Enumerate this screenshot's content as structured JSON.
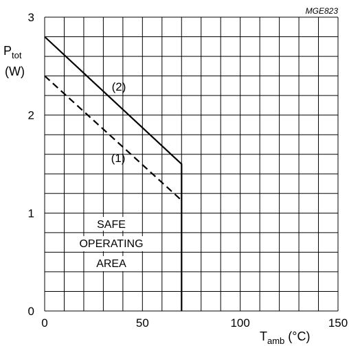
{
  "chart_data": {
    "type": "line",
    "figure_ref": "MGE823",
    "x_axis": {
      "label_main": "T",
      "label_sub": "amb",
      "label_unit": "(°C)",
      "range": [
        0,
        150
      ],
      "ticks": [
        0,
        50,
        100,
        150
      ],
      "tick_labels": [
        "0",
        "50",
        "100",
        "150"
      ],
      "minor_step": 10
    },
    "y_axis": {
      "label_main": "P",
      "label_sub": "tot",
      "label_unit": "(W)",
      "range": [
        0,
        3
      ],
      "ticks": [
        0,
        1,
        2,
        3
      ],
      "tick_labels": [
        "0",
        "1",
        "2",
        "3"
      ],
      "minor_step": 0.2
    },
    "grid": true,
    "series": [
      {
        "id": "curve-2",
        "label": "(2)",
        "style": "solid",
        "points": [
          [
            0,
            2.8
          ],
          [
            70,
            1.5
          ],
          [
            70,
            0
          ]
        ]
      },
      {
        "id": "curve-1",
        "label": "(1)",
        "style": "dashed",
        "points": [
          [
            0,
            2.4
          ],
          [
            70,
            1.13
          ]
        ]
      }
    ],
    "area_label": [
      "SAFE",
      "OPERATING",
      "AREA"
    ]
  }
}
